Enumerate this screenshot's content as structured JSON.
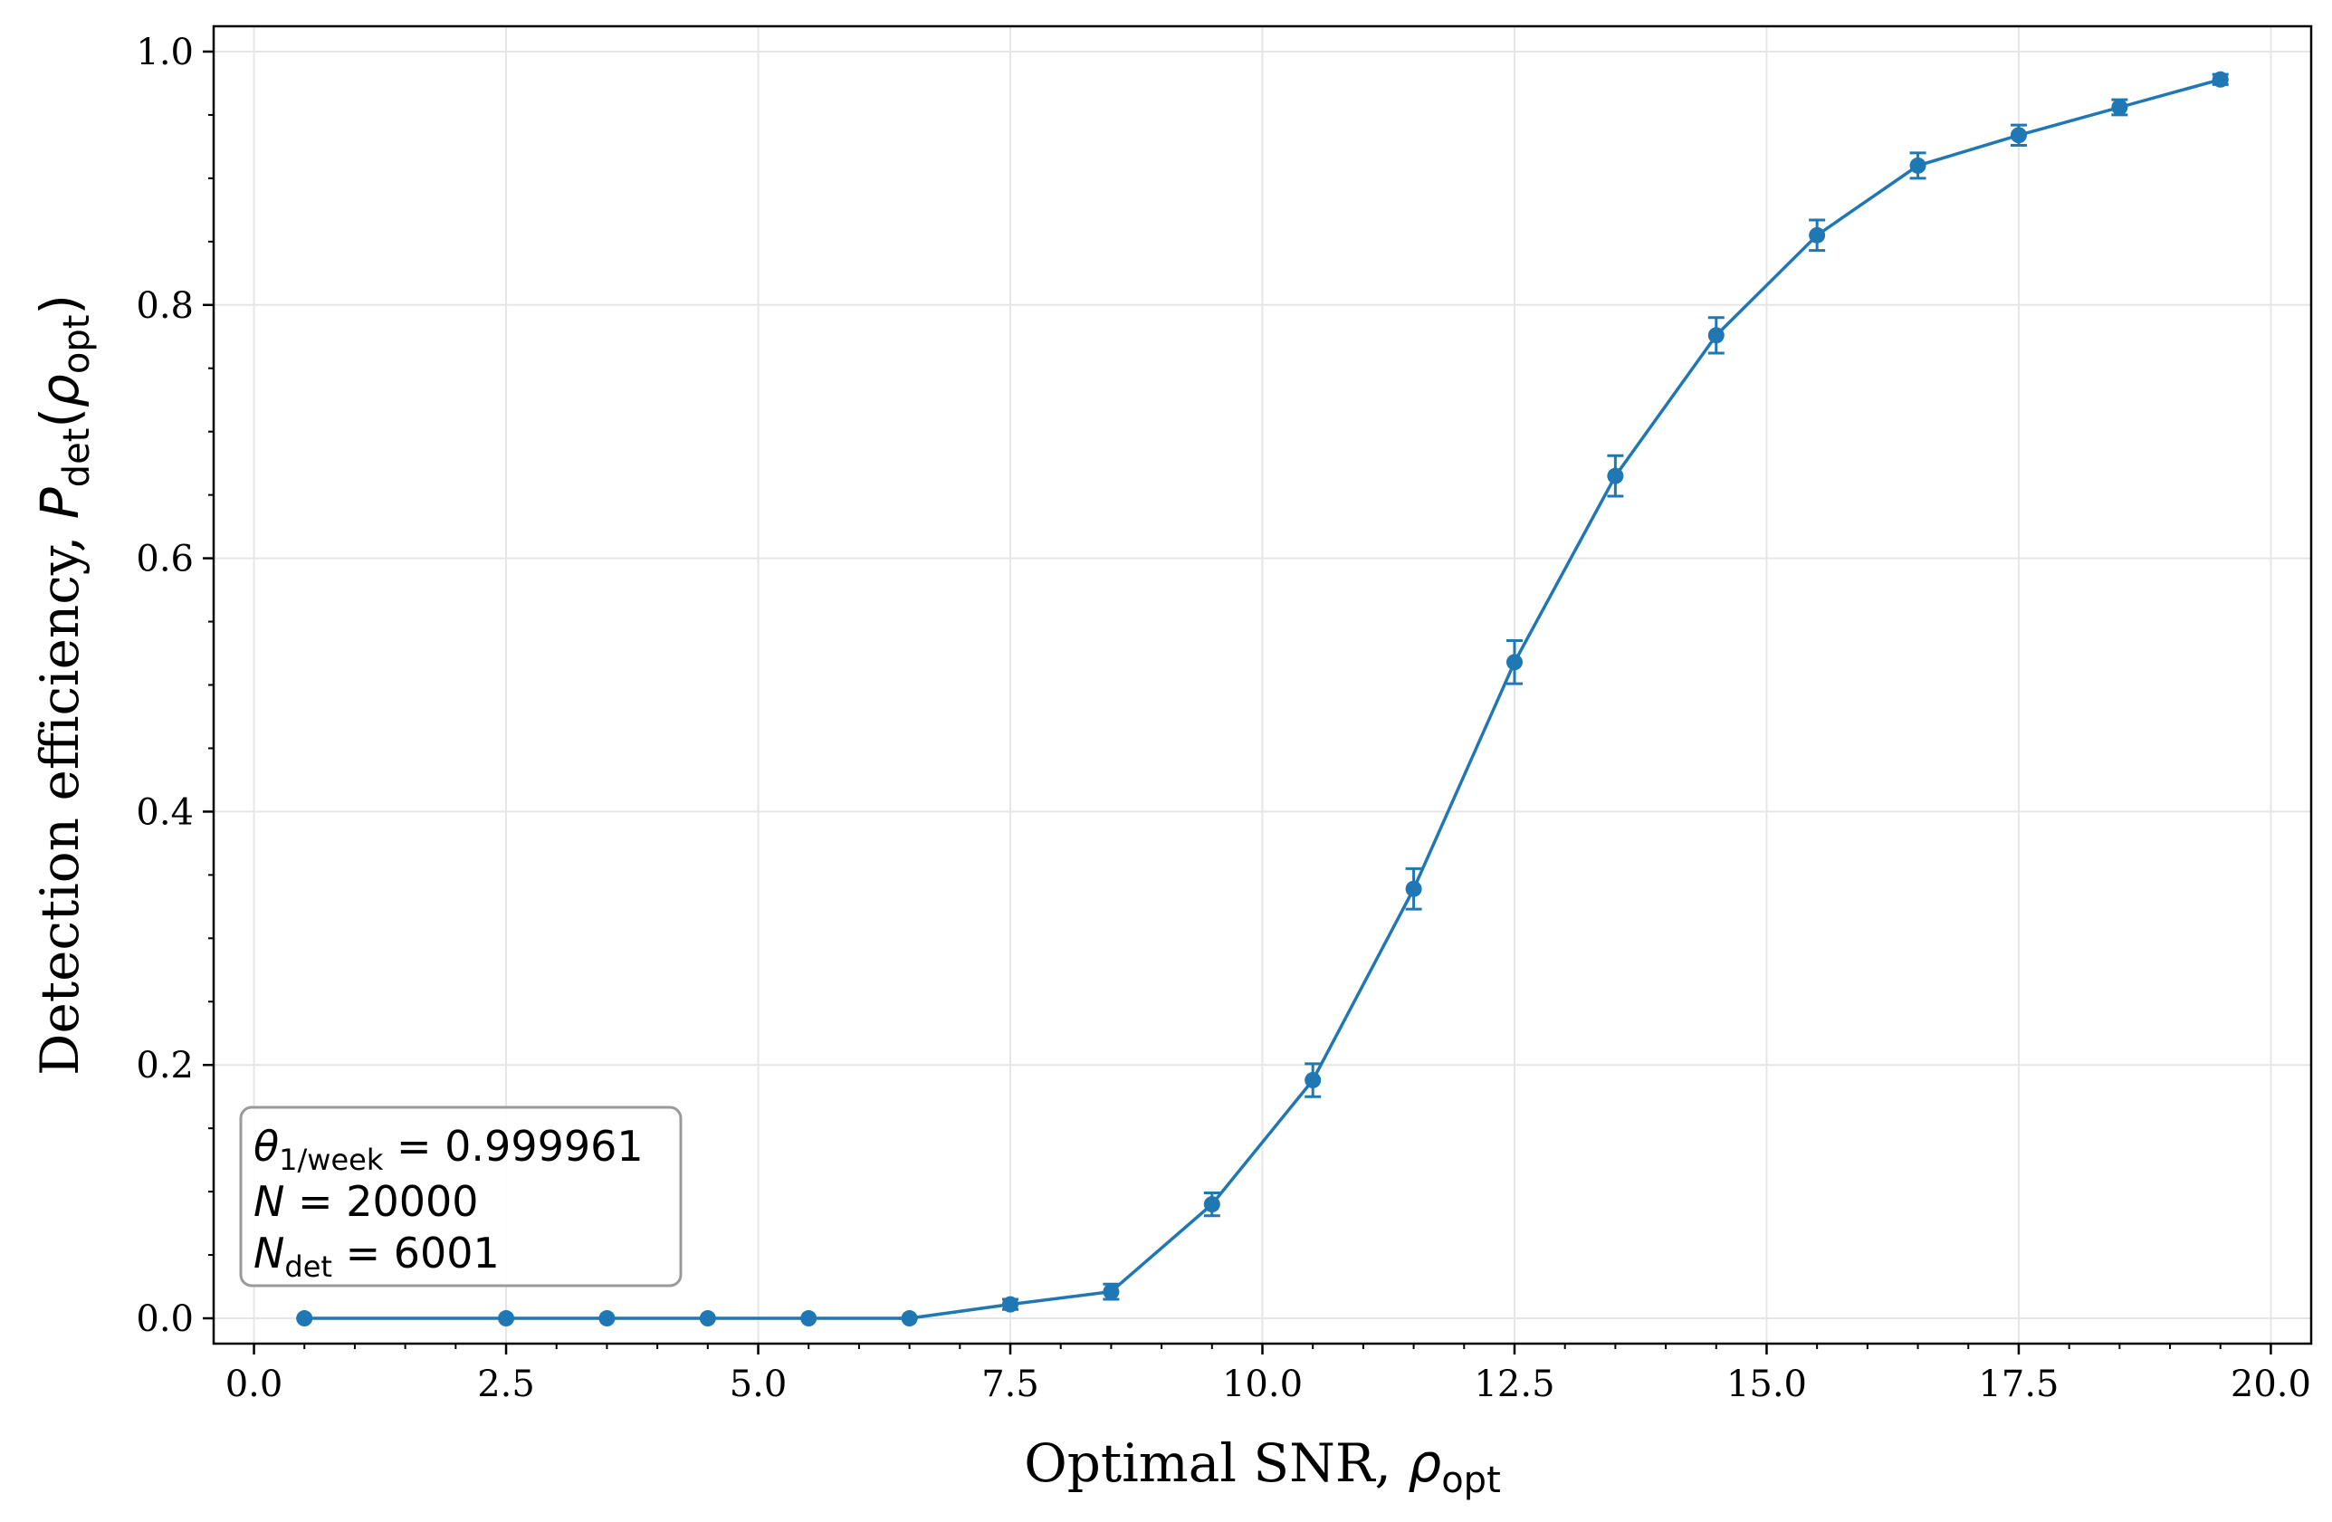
{
  "chart_data": {
    "type": "line",
    "title": "",
    "xlabel_text": "Optimal SNR, ",
    "xlabel_symbol": "ρ",
    "xlabel_sub": "opt",
    "ylabel_text": "Detection efficiency, ",
    "ylabel_symbol": "P",
    "ylabel_sub": "det",
    "ylabel_arg_symbol": "ρ",
    "ylabel_arg_sub": "opt",
    "xlim": [
      -0.4,
      20.4
    ],
    "ylim": [
      -0.02,
      1.02
    ],
    "x_ticks": [
      0.0,
      2.5,
      5.0,
      7.5,
      10.0,
      12.5,
      15.0,
      17.5,
      20.0
    ],
    "x_tick_labels": [
      "0.0",
      "2.5",
      "5.0",
      "7.5",
      "10.0",
      "12.5",
      "15.0",
      "17.5",
      "20.0"
    ],
    "y_ticks": [
      0.0,
      0.2,
      0.4,
      0.6,
      0.8,
      1.0
    ],
    "y_tick_labels": [
      "0.0",
      "0.2",
      "0.4",
      "0.6",
      "0.8",
      "1.0"
    ],
    "grid": true,
    "color": "#1f77b4",
    "series": [
      {
        "x": [
          0.5,
          2.5,
          3.5,
          4.5,
          5.5,
          6.5,
          7.5,
          8.5,
          9.5,
          10.5,
          11.5,
          12.5,
          13.5,
          14.5,
          15.5,
          16.5,
          17.5,
          18.5,
          19.5
        ],
        "y": [
          0.0,
          0.0,
          0.0,
          0.0,
          0.0,
          0.0,
          0.011,
          0.021,
          0.09,
          0.188,
          0.339,
          0.518,
          0.665,
          0.776,
          0.855,
          0.91,
          0.934,
          0.956,
          0.978
        ],
        "yerr": [
          0.0,
          0.0,
          0.0,
          0.0,
          0.0,
          0.0,
          0.004,
          0.006,
          0.009,
          0.013,
          0.016,
          0.017,
          0.016,
          0.014,
          0.012,
          0.01,
          0.008,
          0.006,
          0.004
        ]
      }
    ],
    "annotation": {
      "line1_symbol": "θ",
      "line1_sub": "1/week",
      "line1_value": " = 0.999961",
      "line2_symbol": "N",
      "line2_value": " = 20000",
      "line3_symbol": "N",
      "line3_sub": "det",
      "line3_value": " = 6001",
      "placement": "lower-left"
    }
  }
}
